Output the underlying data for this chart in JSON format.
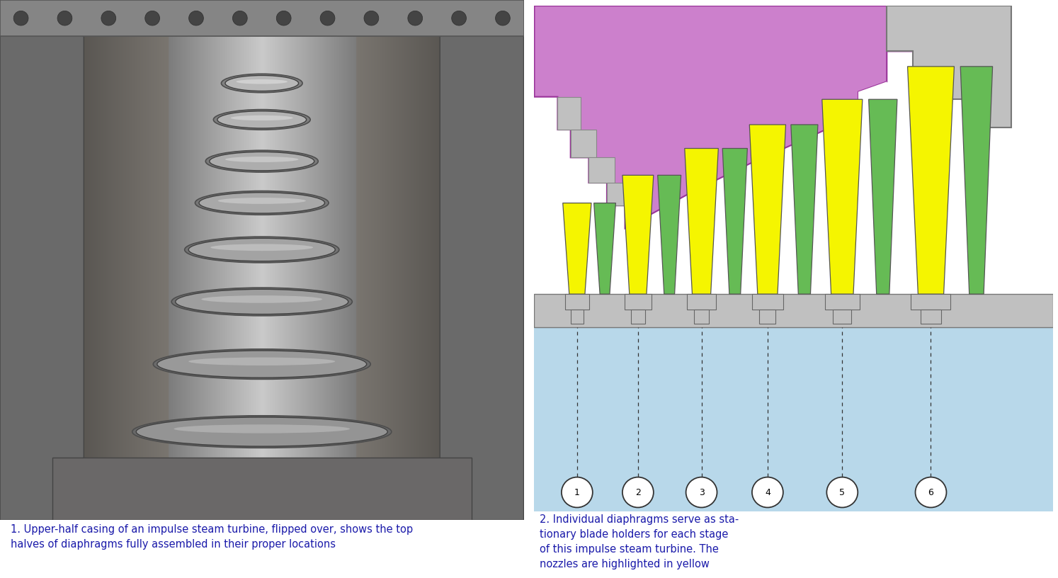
{
  "fig_width": 14.94,
  "fig_height": 8.16,
  "bg_color": "#ffffff",
  "caption1": "1. Upper-half casing of an impulse steam turbine, flipped over, shows the top\nhalves of diaphragms fully assembled in their proper locations",
  "caption2": "2. Individual diaphragms serve as sta-\ntionary blade holders for each stage\nof this impulse steam turbine. The\nnozzles are highlighted in yellow",
  "caption_color": "#1a1aaa",
  "diagram_bg_blue": "#b8d8ea",
  "diagram_bg_white": "#ffffff",
  "purple_color": "#cc80cc",
  "gray_light": "#c0c0c0",
  "gray_med": "#aaaaaa",
  "gray_dark": "#888888",
  "yellow_color": "#f5f500",
  "green_color": "#66bb55",
  "white_color": "#ffffff",
  "stage_labels": [
    "1",
    "2",
    "3",
    "4",
    "5",
    "6"
  ],
  "photo_dark_bg": [
    0.28,
    0.24,
    0.2
  ],
  "photo_mid": [
    0.5,
    0.47,
    0.43
  ],
  "photo_light": [
    0.72,
    0.7,
    0.68
  ]
}
